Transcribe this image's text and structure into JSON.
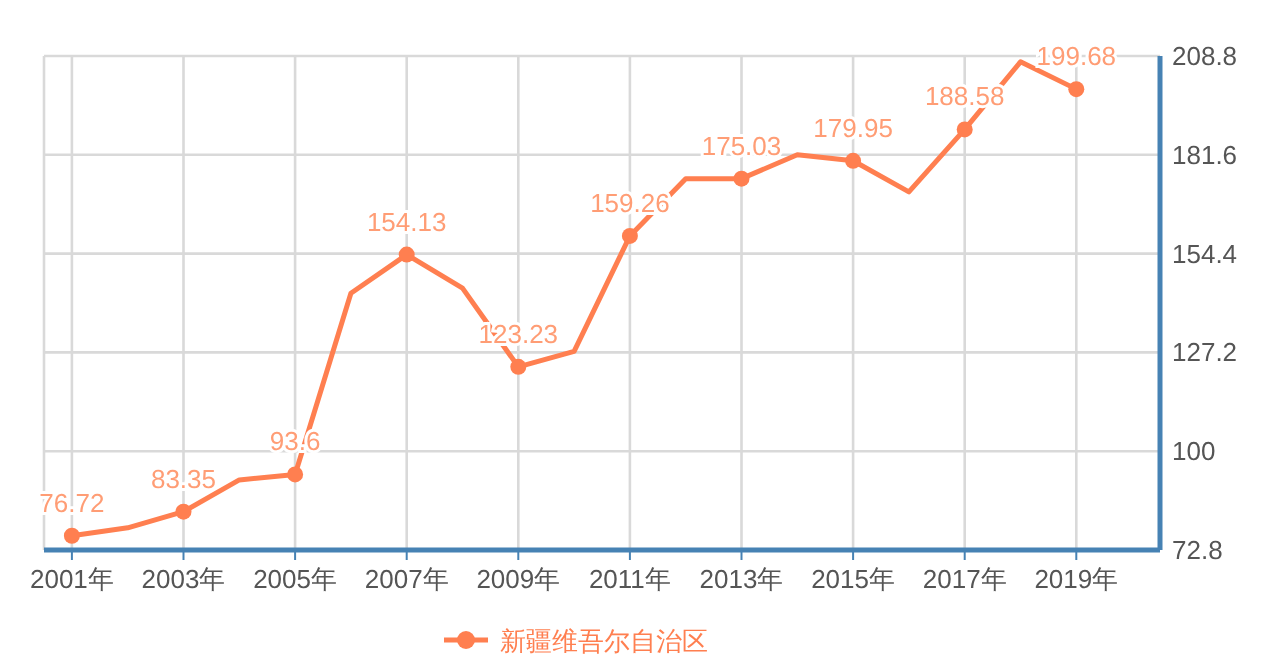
{
  "chart_data": {
    "type": "line",
    "categories": [
      "2001年",
      null,
      "2003年",
      null,
      "2005年",
      null,
      "2007年",
      null,
      "2009年",
      null,
      "2011年",
      null,
      "2013年",
      null,
      "2015年",
      null,
      "2017年",
      null,
      "2019年",
      null
    ],
    "series": [
      {
        "name": "新疆维吾尔自治区",
        "color": "#ff7f50",
        "values": [
          76.72,
          78.9,
          83.35,
          92.1,
          93.6,
          143.5,
          154.13,
          144.9,
          123.23,
          127.5,
          159.26,
          175.0,
          175.03,
          181.6,
          179.95,
          171.4,
          188.58,
          207.2,
          199.68,
          null
        ],
        "value_labels": [
          "76.72",
          null,
          "83.35",
          null,
          "93.6",
          null,
          "154.13",
          null,
          "123.23",
          null,
          "159.26",
          null,
          "175.03",
          null,
          "179.95",
          null,
          "188.58",
          null,
          "199.68",
          null
        ]
      }
    ],
    "ylim": [
      72.8,
      208.8
    ],
    "yticks": [
      72.8,
      100,
      127.2,
      154.4,
      181.6,
      208.8
    ],
    "grid": true,
    "legend": "bottom",
    "marker": "circle"
  }
}
